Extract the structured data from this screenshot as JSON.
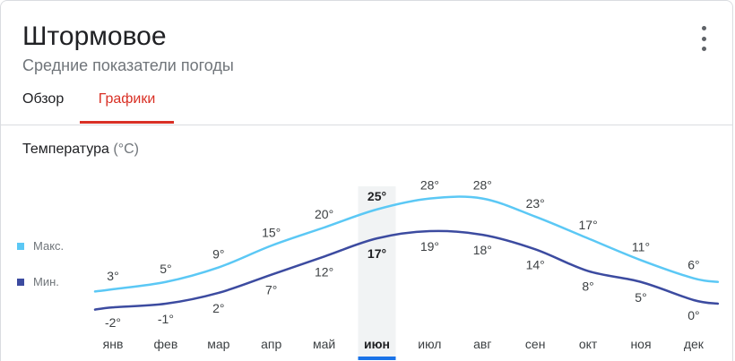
{
  "header": {
    "title": "Штормовое",
    "subtitle": "Средние показатели погоды"
  },
  "tabs": [
    {
      "label": "Обзор",
      "active": false
    },
    {
      "label": "Графики",
      "active": true
    }
  ],
  "section": {
    "title": "Температура",
    "unit": "(°C)"
  },
  "legend": {
    "max_label": "Макс.",
    "min_label": "Мин."
  },
  "colors": {
    "max": "#5bc8f5",
    "min": "#3c4ba0",
    "accent": "#d93025",
    "selected_bar": "#1a73e8"
  },
  "chart_data": {
    "type": "line",
    "title": "Температура",
    "ylabel": "(°C)",
    "categories": [
      "янв",
      "фев",
      "мар",
      "апр",
      "май",
      "июн",
      "июл",
      "авг",
      "сен",
      "окт",
      "ноя",
      "дек"
    ],
    "selected_index": 5,
    "series": [
      {
        "name": "Макс.",
        "values": [
          3,
          5,
          9,
          15,
          20,
          25,
          28,
          28,
          23,
          17,
          11,
          6
        ],
        "labels": [
          "3°",
          "5°",
          "9°",
          "15°",
          "20°",
          "25°",
          "28°",
          "28°",
          "23°",
          "17°",
          "11°",
          "6°"
        ]
      },
      {
        "name": "Мин.",
        "values": [
          -2,
          -1,
          2,
          7,
          12,
          17,
          19,
          18,
          14,
          8,
          5,
          0
        ],
        "labels": [
          "-2°",
          "-1°",
          "2°",
          "7°",
          "12°",
          "17°",
          "19°",
          "18°",
          "14°",
          "8°",
          "5°",
          "0°"
        ]
      }
    ],
    "grid": false,
    "legend_position": "left"
  }
}
